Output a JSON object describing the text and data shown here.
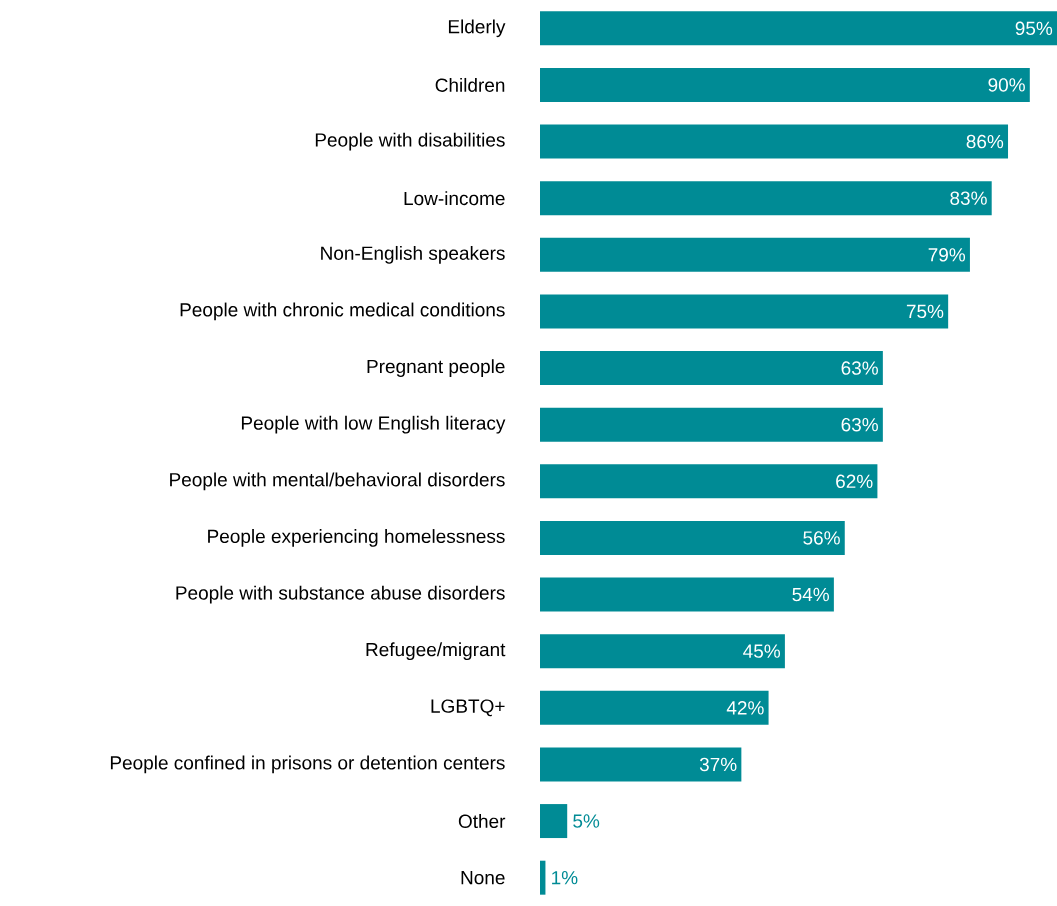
{
  "chart_data": {
    "type": "bar",
    "orientation": "horizontal",
    "categories": [
      "Elderly",
      "Children",
      "People with disabilities",
      "Low-income",
      "Non-English speakers",
      "People with chronic medical conditions",
      "Pregnant people",
      "People with low English literacy",
      "People with mental/behavioral disorders",
      "People experiencing homelessness",
      "People with substance abuse disorders",
      "Refugee/migrant",
      "LGBTQ+",
      "People confined in prisons or detention centers",
      "Other",
      "None"
    ],
    "values": [
      95,
      90,
      86,
      83,
      79,
      75,
      63,
      63,
      62,
      56,
      54,
      45,
      42,
      37,
      5,
      1
    ],
    "value_labels": [
      "95%",
      "90%",
      "86%",
      "83%",
      "79%",
      "75%",
      "63%",
      "63%",
      "62%",
      "56%",
      "54%",
      "45%",
      "42%",
      "37%",
      "5%",
      "1%"
    ],
    "color": "#008b95"
  }
}
